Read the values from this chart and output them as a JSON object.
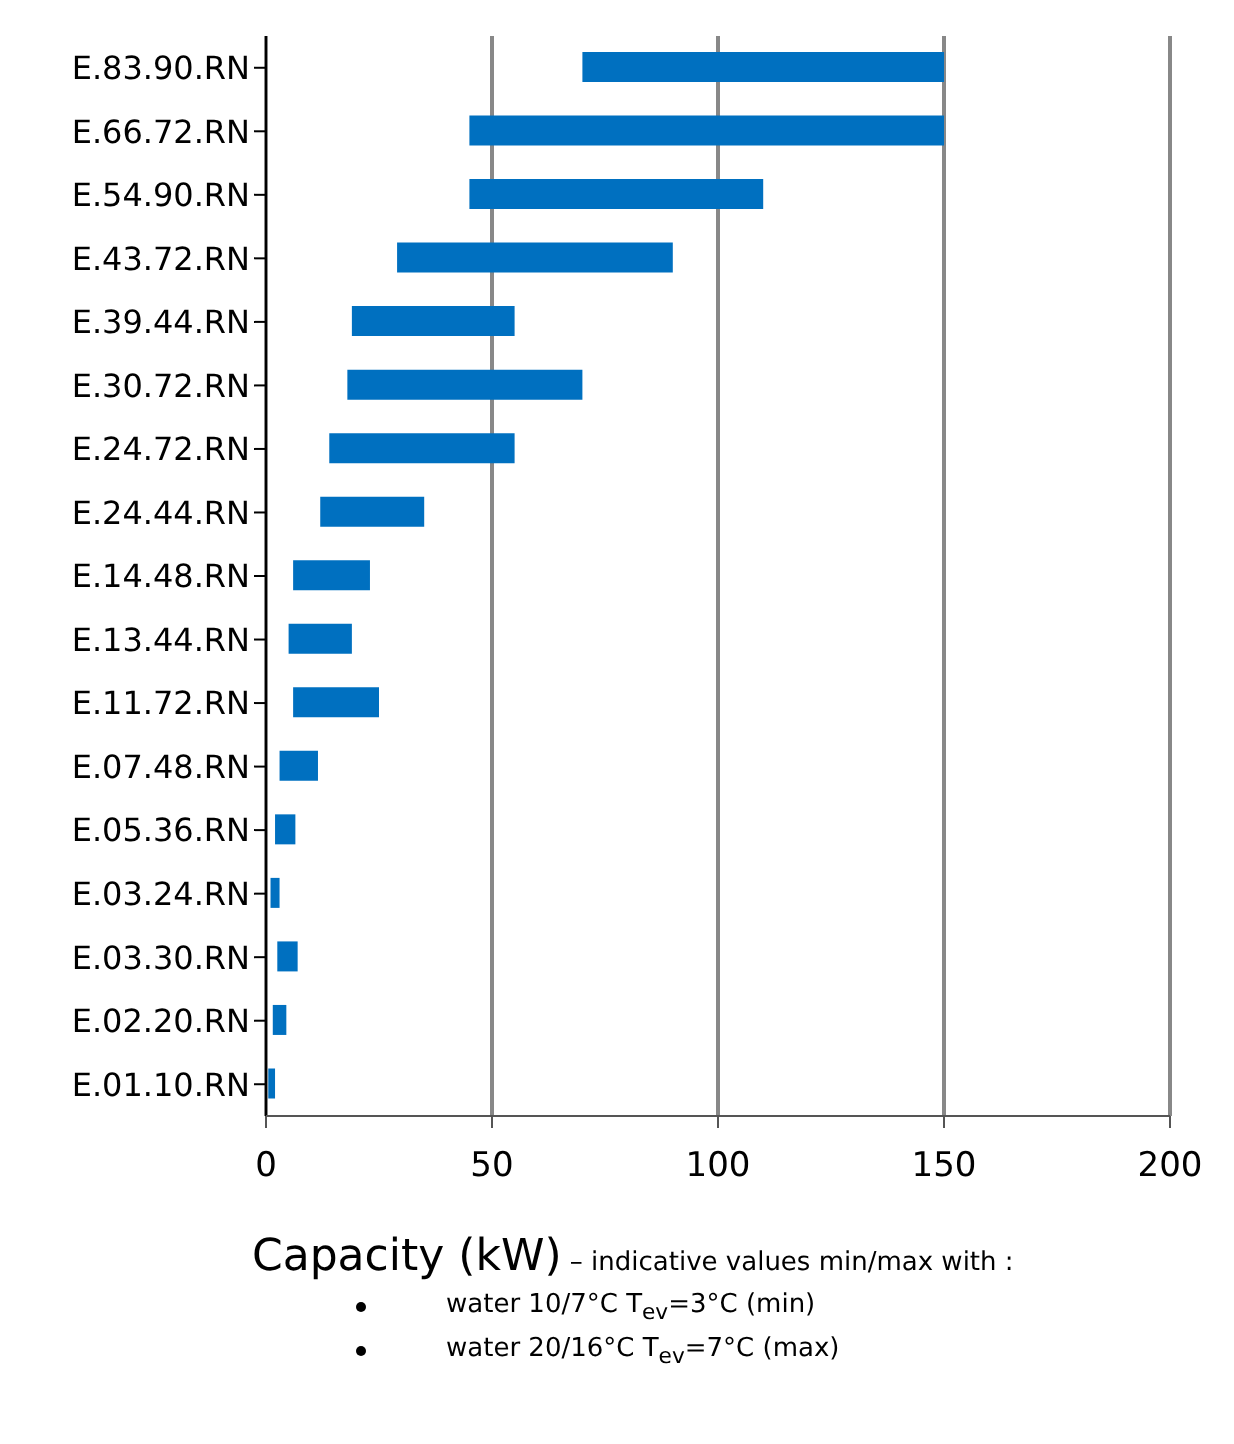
{
  "chart_data": {
    "type": "bar",
    "orientation": "horizontal",
    "xlabel": "Capacity (kW)",
    "annotations": [
      "– indicative values min/max with :",
      "water 10/7°C T$_{ev}$=3°C (min)",
      "water 20/16°C T$_{ev}$=7°C (max)"
    ],
    "categories": [
      "E.83.90.RN",
      "E.66.72.RN",
      "E.54.90.RN",
      "E.43.72.RN",
      "E.39.44.RN",
      "E.30.72.RN",
      "E.24.72.RN",
      "E.24.44.RN",
      "E.14.48.RN",
      "E.13.44.RN",
      "E.11.72.RN",
      "E.07.48.RN",
      "E.05.36.RN",
      "E.03.24.RN",
      "E.03.30.RN",
      "E.02.20.RN",
      "E.01.10.RN"
    ],
    "base": [
      70,
      45,
      45,
      29,
      19,
      18,
      14,
      12,
      6,
      5,
      6,
      3,
      2,
      1,
      2.5,
      1.5,
      0.5
    ],
    "values": [
      80,
      105,
      65,
      61,
      36,
      52,
      41,
      23,
      17,
      14,
      19,
      8.5,
      4.5,
      2,
      4.5,
      3,
      1.5
    ],
    "color": "#0070c0",
    "xlim": [
      0,
      200
    ],
    "xticks": [
      0,
      50,
      100,
      150,
      200
    ],
    "grid": "x"
  }
}
